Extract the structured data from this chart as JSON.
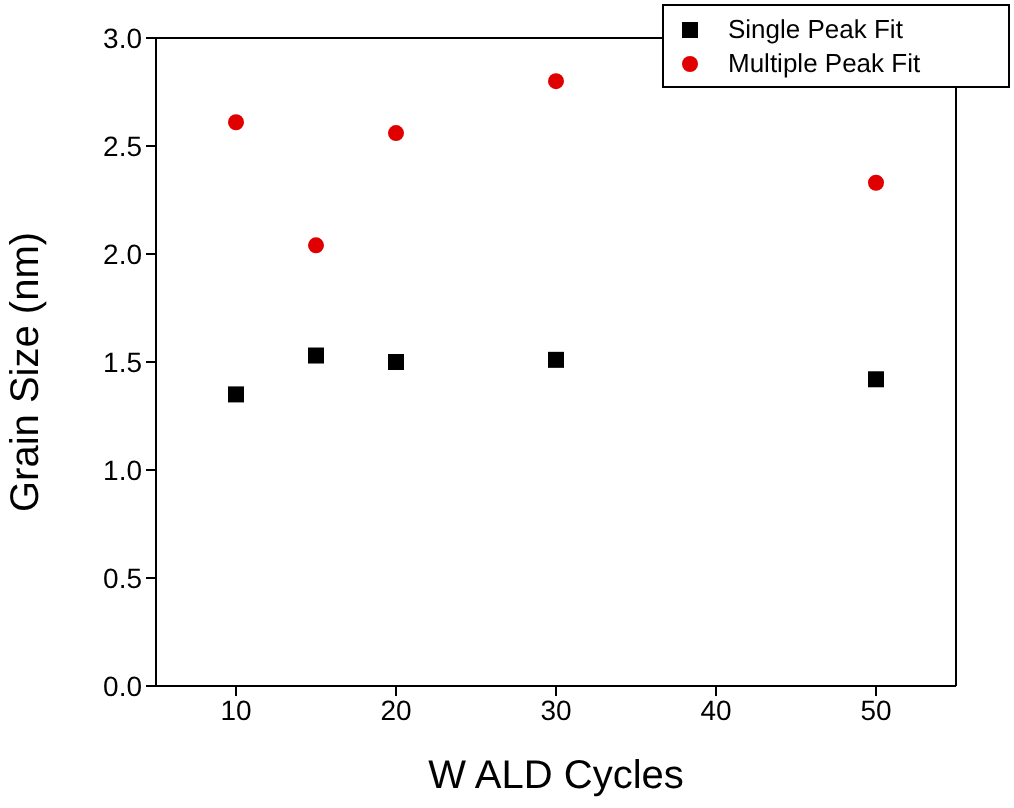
{
  "chart_data": {
    "type": "scatter",
    "xlabel": "W ALD Cycles",
    "ylabel": "Grain Size (nm)",
    "x": [
      10,
      15,
      20,
      30,
      50
    ],
    "series": [
      {
        "name": "Single Peak Fit",
        "color": "#000000",
        "marker": "square",
        "values": [
          1.35,
          1.53,
          1.5,
          1.51,
          1.42
        ]
      },
      {
        "name": "Multiple Peak Fit",
        "color": "#e00000",
        "marker": "circle",
        "values": [
          2.61,
          2.04,
          2.56,
          2.8,
          2.33
        ]
      }
    ],
    "xlim": [
      5,
      55
    ],
    "xticks": [
      10,
      20,
      30,
      40,
      50
    ],
    "ylim": [
      0,
      3
    ],
    "yticks": [
      {
        "value": 0,
        "label": "0.0"
      },
      {
        "value": 0.5,
        "label": "0.5"
      },
      {
        "value": 1,
        "label": "1.0"
      },
      {
        "value": 1.5,
        "label": "1.5"
      },
      {
        "value": 2,
        "label": "2.0"
      },
      {
        "value": 2.5,
        "label": "2.5"
      },
      {
        "value": 3,
        "label": "3.0"
      }
    ],
    "legend": "top right"
  }
}
